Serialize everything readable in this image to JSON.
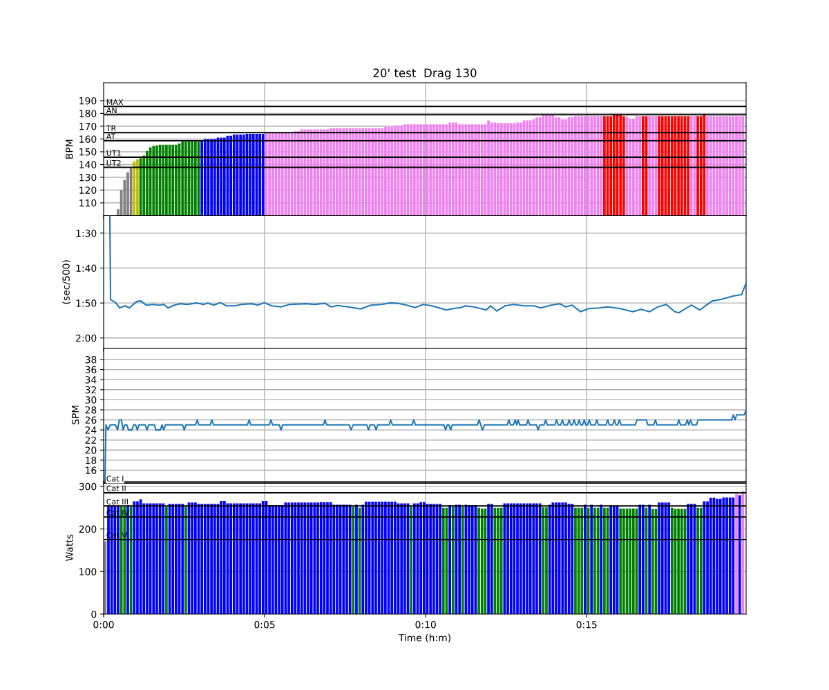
{
  "chart_data": [
    {
      "type": "bar",
      "title": "20' test  Drag 130",
      "ylabel": "BPM",
      "tick_labels": "y",
      "grid": true,
      "xlim": [
        0,
        1197
      ],
      "xticks": [
        {
          "value": 0,
          "label": null
        },
        {
          "value": 300,
          "label": null
        },
        {
          "value": 600,
          "label": null
        },
        {
          "value": 900,
          "label": null
        }
      ],
      "ylim": [
        100,
        204
      ],
      "yticks": [
        110,
        120,
        130,
        140,
        150,
        160,
        170,
        180,
        190
      ],
      "x": [
        27,
        33,
        39,
        45,
        51,
        57,
        63,
        69,
        75,
        81,
        87,
        93,
        99,
        105,
        111,
        117,
        123,
        129,
        135,
        141,
        147,
        153,
        159,
        165,
        171,
        177,
        183,
        189,
        195,
        201,
        207,
        213,
        219,
        225,
        231,
        237,
        243,
        249,
        255,
        261,
        267,
        273,
        279,
        285,
        291,
        297,
        303,
        309,
        315,
        321,
        327,
        333,
        339,
        345,
        351,
        357,
        363,
        369,
        375,
        381,
        387,
        393,
        399,
        405,
        411,
        417,
        423,
        429,
        435,
        441,
        447,
        453,
        459,
        465,
        471,
        477,
        483,
        489,
        495,
        501,
        507,
        513,
        519,
        525,
        531,
        537,
        543,
        549,
        555,
        561,
        567,
        573,
        579,
        585,
        591,
        597,
        603,
        609,
        615,
        621,
        627,
        633,
        639,
        645,
        651,
        657,
        663,
        669,
        675,
        681,
        687,
        693,
        699,
        705,
        711,
        717,
        723,
        729,
        735,
        741,
        747,
        753,
        759,
        765,
        771,
        777,
        783,
        789,
        795,
        801,
        807,
        813,
        819,
        825,
        831,
        837,
        843,
        849,
        855,
        861,
        867,
        873,
        879,
        885,
        891,
        897,
        903,
        909,
        915,
        921,
        927,
        933,
        939,
        945,
        951,
        957,
        963,
        969,
        975,
        981,
        987,
        993,
        999,
        1005,
        1011,
        1017,
        1023,
        1029,
        1035,
        1041,
        1047,
        1053,
        1059,
        1065,
        1071,
        1077,
        1083,
        1089,
        1095,
        1101,
        1107,
        1113,
        1119,
        1125,
        1131,
        1137,
        1143,
        1149,
        1155,
        1161,
        1167,
        1173,
        1179,
        1185,
        1191
      ],
      "values": [
        105,
        120,
        128,
        134,
        137,
        142.5,
        144,
        145,
        147,
        150.5,
        153.5,
        154.5,
        155,
        155.5,
        155.5,
        155.5,
        155.5,
        155.5,
        155.5,
        156.5,
        158,
        158,
        158,
        158,
        158,
        158,
        159,
        160,
        160,
        160,
        160,
        161,
        161,
        161,
        162.5,
        162.5,
        163.5,
        163.5,
        163.5,
        163.5,
        164,
        164,
        164,
        164,
        164,
        164,
        164.5,
        164.5,
        164.5,
        164.5,
        164.5,
        164.5,
        164.5,
        164.5,
        164.5,
        166,
        166,
        167.5,
        167.5,
        167.5,
        167.5,
        167.5,
        167.5,
        167.5,
        167.5,
        167.5,
        168.5,
        168.5,
        168.5,
        168.5,
        168.5,
        168.5,
        168.5,
        168.5,
        168.5,
        168.5,
        168.5,
        168.5,
        168.5,
        168.5,
        168.5,
        168.5,
        168.5,
        169.5,
        169.5,
        169.5,
        170.5,
        170.5,
        170.5,
        171.5,
        171.5,
        171.5,
        171.5,
        171.5,
        171.5,
        171.5,
        171.5,
        171.5,
        171.5,
        171.5,
        171.5,
        171.5,
        171.5,
        173,
        173,
        173,
        171.5,
        171.5,
        171.5,
        171.5,
        171.5,
        171.5,
        171.5,
        171.5,
        171.5,
        174.5,
        173,
        173,
        172.5,
        172.5,
        172.5,
        172.5,
        172.5,
        172.5,
        173,
        173,
        174.5,
        174.5,
        174.5,
        175.5,
        177,
        177,
        178.5,
        178.5,
        178.5,
        178.5,
        177,
        177,
        175.5,
        175.5,
        177,
        177,
        178,
        178,
        178,
        178,
        178,
        178,
        178,
        178,
        178,
        178,
        178,
        178,
        179.5,
        179.5,
        179.5,
        178,
        177.5,
        176,
        176,
        178,
        178,
        178,
        178,
        178,
        178,
        178,
        178,
        178,
        178,
        178,
        178,
        178,
        178,
        178,
        178,
        178,
        178,
        178,
        178,
        178,
        179.5,
        178,
        178,
        178,
        178,
        178,
        178,
        178,
        178,
        178,
        178,
        178,
        178
      ],
      "colors": [
        "#808080",
        "#808080",
        "#808080",
        "#808080",
        "#808080",
        "#bfbf00",
        "#bfbf00",
        "#008000",
        "#008000",
        "#008000",
        "#008000",
        "#008000",
        "#008000",
        "#008000",
        "#008000",
        "#008000",
        "#008000",
        "#008000",
        "#008000",
        "#008000",
        "#008000",
        "#008000",
        "#008000",
        "#008000",
        "#008000",
        "#008000",
        "#0000ff",
        "#0000ff",
        "#0000ff",
        "#0000ff",
        "#0000ff",
        "#0000ff",
        "#0000ff",
        "#0000ff",
        "#0000ff",
        "#0000ff",
        "#0000ff",
        "#0000ff",
        "#0000ff",
        "#0000ff",
        "#0000ff",
        "#0000ff",
        "#0000ff",
        "#0000ff",
        "#0000ff",
        "#0000ff",
        "#ee82ee",
        "#ee82ee",
        "#ee82ee",
        "#ee82ee",
        "#ee82ee",
        "#ee82ee",
        "#ee82ee",
        "#ee82ee",
        "#ee82ee",
        "#ee82ee",
        "#ee82ee",
        "#ee82ee",
        "#ee82ee",
        "#ee82ee",
        "#ee82ee",
        "#ee82ee",
        "#ee82ee",
        "#ee82ee",
        "#ee82ee",
        "#ee82ee",
        "#ee82ee",
        "#ee82ee",
        "#ee82ee",
        "#ee82ee",
        "#ee82ee",
        "#ee82ee",
        "#ee82ee",
        "#ee82ee",
        "#ee82ee",
        "#ee82ee",
        "#ee82ee",
        "#ee82ee",
        "#ee82ee",
        "#ee82ee",
        "#ee82ee",
        "#ee82ee",
        "#ee82ee",
        "#ee82ee",
        "#ee82ee",
        "#ee82ee",
        "#ee82ee",
        "#ee82ee",
        "#ee82ee",
        "#ee82ee",
        "#ee82ee",
        "#ee82ee",
        "#ee82ee",
        "#ee82ee",
        "#ee82ee",
        "#ee82ee",
        "#ee82ee",
        "#ee82ee",
        "#ee82ee",
        "#ee82ee",
        "#ee82ee",
        "#ee82ee",
        "#ee82ee",
        "#ee82ee",
        "#ee82ee",
        "#ee82ee",
        "#ee82ee",
        "#ee82ee",
        "#ee82ee",
        "#ee82ee",
        "#ee82ee",
        "#ee82ee",
        "#ee82ee",
        "#ee82ee",
        "#ee82ee",
        "#ee82ee",
        "#ee82ee",
        "#ee82ee",
        "#ee82ee",
        "#ee82ee",
        "#ee82ee",
        "#ee82ee",
        "#ee82ee",
        "#ee82ee",
        "#ee82ee",
        "#ee82ee",
        "#ee82ee",
        "#ee82ee",
        "#ee82ee",
        "#ee82ee",
        "#ee82ee",
        "#ee82ee",
        "#ee82ee",
        "#ee82ee",
        "#ee82ee",
        "#ee82ee",
        "#ee82ee",
        "#ee82ee",
        "#ee82ee",
        "#ee82ee",
        "#ee82ee",
        "#ee82ee",
        "#ee82ee",
        "#ee82ee",
        "#ee82ee",
        "#ee82ee",
        "#ee82ee",
        "#ee82ee",
        "#ee82ee",
        "#ee82ee",
        "#ee82ee",
        "#ff0000",
        "#ff0000",
        "#ff0000",
        "#ff0000",
        "#ff0000",
        "#ff0000",
        "#ff0000",
        "#ee82ee",
        "#ee82ee",
        "#ee82ee",
        "#ee82ee",
        "#ee82ee",
        "#ff0000",
        "#ff0000",
        "#ee82ee",
        "#ee82ee",
        "#ee82ee",
        "#ff0000",
        "#ff0000",
        "#ff0000",
        "#ff0000",
        "#ff0000",
        "#ff0000",
        "#ff0000",
        "#ff0000",
        "#ff0000",
        "#ff0000",
        "#ee82ee",
        "#ee82ee",
        "#ff0000",
        "#ff0000",
        "#ff0000",
        "#ee82ee",
        "#ee82ee",
        "#ee82ee",
        "#ee82ee",
        "#ee82ee",
        "#ee82ee",
        "#ee82ee",
        "#ee82ee",
        "#ee82ee",
        "#ee82ee",
        "#ee82ee",
        "#ee82ee"
      ],
      "ref_lines": [
        {
          "axis": "y",
          "value": 185.5,
          "label": "MAX",
          "color": "#000000"
        },
        {
          "axis": "y",
          "value": 179,
          "label": "AN",
          "color": "#000000"
        },
        {
          "axis": "y",
          "value": 165,
          "label": "TR",
          "color": "#000000"
        },
        {
          "axis": "y",
          "value": 158.6,
          "label": "AT",
          "color": "#000000"
        },
        {
          "axis": "y",
          "value": 145.7,
          "label": "UT1",
          "color": "#000000"
        },
        {
          "axis": "y",
          "value": 137.8,
          "label": "UT2",
          "color": "#000000"
        }
      ]
    },
    {
      "type": "line",
      "ylabel": "(sec/500)",
      "tick_labels": "y",
      "grid": true,
      "xlim": [
        0,
        1197
      ],
      "xticks": [
        {
          "value": 0,
          "label": null
        },
        {
          "value": 300,
          "label": null
        },
        {
          "value": 600,
          "label": null
        },
        {
          "value": 900,
          "label": null
        }
      ],
      "ylim": [
        123,
        85
      ],
      "yticks": [
        {
          "value": 90,
          "label": "1:30"
        },
        {
          "value": 100,
          "label": "1:40"
        },
        {
          "value": 110,
          "label": "1:50"
        },
        {
          "value": 120,
          "label": "2:00"
        }
      ],
      "series": [
        {
          "color": "#1f77b4",
          "x": [
            11.6,
            12.9,
            22.2,
            30.0,
            40.2,
            48.0,
            61.3,
            69.1,
            79.2,
            92.5,
            104.2,
            112.0,
            119.8,
            131.5,
            143.2,
            154.9,
            174.4,
            186.1,
            193.9,
            205.6,
            217.3,
            229.0,
            244.6,
            256.3,
            275.8,
            287.5,
            299.2,
            313.3,
            330.5,
            346.1,
            377.3,
            392.9,
            412.4,
            424.1,
            435.8,
            455.3,
            478.7,
            498.2,
            517.7,
            533.3,
            548.9,
            564.5,
            580.2,
            595.8,
            611.4,
            638.7,
            650.4,
            666.0,
            673.8,
            689.4,
            705.0,
            712.8,
            720.6,
            732.3,
            748.0,
            763.6,
            783.1,
            802.6,
            814.2,
            833.8,
            849.4,
            861.1,
            872.8,
            888.4,
            904.0,
            923.5,
            939.1,
            962.5,
            986.0,
            1001.5,
            1017.1,
            1032.7,
            1048.3,
            1063.9,
            1071.7,
            1079.5,
            1095.2,
            1110.8,
            1118.6,
            1134.2,
            1149.7,
            1173.2,
            1188.8,
            1197
          ],
          "values": [
            85,
            109.0,
            109.9,
            111.4,
            110.8,
            111.4,
            109.6,
            109.4,
            110.6,
            110.4,
            110.6,
            110.4,
            111.4,
            110.6,
            110.2,
            110.4,
            110.0,
            110.4,
            110.0,
            110.6,
            109.9,
            110.8,
            110.8,
            110.4,
            110.2,
            110.6,
            109.9,
            110.8,
            111.1,
            110.4,
            110.2,
            110.4,
            110.1,
            111.1,
            110.7,
            111.1,
            111.7,
            110.6,
            110.4,
            110.0,
            110.1,
            110.6,
            111.3,
            110.4,
            110.8,
            112.0,
            111.6,
            111.3,
            110.8,
            111.1,
            111.7,
            112.0,
            110.8,
            112.3,
            110.8,
            110.4,
            110.8,
            110.8,
            111.4,
            110.6,
            110.2,
            111.1,
            110.6,
            112.5,
            111.6,
            111.4,
            111.1,
            111.6,
            112.5,
            111.8,
            112.5,
            111.1,
            110.4,
            112.5,
            112.8,
            112.0,
            110.6,
            112.0,
            111.1,
            109.4,
            109.0,
            108.0,
            107.6,
            104.2
          ]
        }
      ]
    },
    {
      "type": "line",
      "ylabel": "SPM",
      "tick_labels": "y",
      "grid": true,
      "xlim": [
        0,
        1197
      ],
      "xticks": [
        {
          "value": 0,
          "label": null
        },
        {
          "value": 300,
          "label": null
        },
        {
          "value": 600,
          "label": null
        },
        {
          "value": 900,
          "label": null
        }
      ],
      "ylim": [
        13.8,
        40.2
      ],
      "yticks": [
        16,
        18,
        20,
        22,
        24,
        26,
        28,
        30,
        32,
        34,
        36,
        38
      ],
      "series": [
        {
          "color": "#1f77b4",
          "x": [
            2.7,
            4.3,
            8.2,
            12.1,
            22.2,
            26.1,
            29.3,
            33.2,
            36.3,
            39.4,
            43.3,
            46.4,
            52.7,
            55.8,
            59.7,
            62.8,
            66.0,
            77.6,
            80.8,
            83.9,
            94.8,
            97.1,
            105.7,
            108.8,
            112.0,
            115.1,
            147.1,
            150.2,
            153.3,
            171.3,
            174.4,
            177.5,
            198.6,
            201.7,
            204.8,
            268.0,
            271.2,
            274.3,
            308.6,
            311.7,
            314.9,
            327.3,
            330.5,
            333.6,
            409.3,
            412.4,
            415.5,
            457.6,
            460.8,
            464.7,
            490.4,
            493.5,
            496.7,
            504.5,
            507.6,
            510.7,
            531.8,
            534.9,
            538.0,
            574.7,
            577.8,
            580.9,
            634.0,
            637.1,
            640.2,
            643.4,
            646.5,
            649.6,
            696.4,
            699.5,
            702.7,
            705.8,
            709.7,
            751.8,
            755.0,
            758.1,
            763.5,
            766.6,
            769.8,
            772.1,
            775.2,
            787.7,
            790.8,
            793.9,
            806.4,
            809.6,
            812.7,
            820.5,
            823.6,
            826.7,
            840.8,
            843.9,
            847.0,
            851.7,
            854.8,
            857.9,
            864.2,
            867.3,
            870.4,
            873.5,
            876.7,
            879.8,
            882.9,
            886.0,
            889.1,
            892.3,
            895.4,
            898.5,
            901.6,
            904.8,
            907.9,
            915.7,
            918.8,
            921.9,
            936.0,
            939.1,
            942.2,
            948.5,
            951.6,
            954.7,
            957.8,
            961.0,
            964.1,
            990.6,
            993.7,
            1010.9,
            1014.0,
            1024.9,
            1028.0,
            1031.2,
            1068.6,
            1071.7,
            1074.9,
            1084.2,
            1087.3,
            1090.5,
            1093.6,
            1096.7,
            1104.5,
            1107.6,
            1170.1,
            1173.2,
            1176.3,
            1179.4,
            1193.5,
            1197
          ],
          "values": [
            14,
            25,
            24,
            25,
            25,
            24,
            26,
            26,
            24,
            25,
            25,
            24,
            24,
            25,
            25,
            24,
            25,
            25,
            24,
            25,
            25,
            24,
            24,
            25,
            24,
            25,
            25,
            24,
            25,
            25,
            26,
            25,
            25,
            26,
            25,
            25,
            26,
            25,
            25,
            26,
            25,
            25,
            24,
            25,
            25,
            26,
            25,
            25,
            24,
            25,
            25,
            24,
            25,
            25,
            24,
            25,
            25,
            26,
            25,
            25,
            26,
            25,
            25,
            24,
            25,
            25,
            24,
            25,
            25,
            26,
            25,
            24,
            25,
            25,
            26,
            25,
            25,
            26,
            25,
            26,
            25,
            25,
            26,
            25,
            25,
            24,
            25,
            25,
            26,
            25,
            25,
            26,
            25,
            25,
            26,
            25,
            25,
            26,
            25,
            25,
            26,
            25,
            25,
            26,
            25,
            25,
            26,
            25,
            25,
            26,
            25,
            25,
            26,
            25,
            25,
            26,
            25,
            25,
            26,
            25,
            25,
            26,
            25,
            25,
            26,
            26,
            25,
            25,
            26,
            25,
            25,
            26,
            25,
            25,
            26,
            25,
            26,
            25,
            25,
            26,
            26,
            27,
            26,
            27,
            27,
            28
          ]
        }
      ]
    },
    {
      "type": "bar",
      "ylabel": "Watts",
      "xlabel": "Time (h:m)",
      "grid": true,
      "xlim": [
        0,
        1197
      ],
      "xticks": [
        {
          "value": 0,
          "label": "0:00"
        },
        {
          "value": 300,
          "label": "0:05"
        },
        {
          "value": 600,
          "label": "0:10"
        },
        {
          "value": 900,
          "label": "0:15"
        }
      ],
      "ylim": [
        0,
        312
      ],
      "yticks": [
        0,
        100,
        200,
        300
      ],
      "x": [
        3,
        9,
        15,
        21,
        27,
        33,
        39,
        45,
        51,
        57,
        63,
        69,
        75,
        81,
        87,
        93,
        99,
        105,
        111,
        117,
        123,
        129,
        135,
        141,
        147,
        153,
        159,
        165,
        171,
        177,
        183,
        189,
        195,
        201,
        207,
        213,
        219,
        225,
        231,
        237,
        243,
        249,
        255,
        261,
        267,
        273,
        279,
        285,
        291,
        297,
        303,
        309,
        315,
        321,
        327,
        333,
        339,
        345,
        351,
        357,
        363,
        369,
        375,
        381,
        387,
        393,
        399,
        405,
        411,
        417,
        423,
        429,
        435,
        441,
        447,
        453,
        459,
        465,
        471,
        477,
        483,
        489,
        495,
        501,
        507,
        513,
        519,
        525,
        531,
        537,
        543,
        549,
        555,
        561,
        567,
        573,
        579,
        585,
        591,
        597,
        603,
        609,
        615,
        621,
        627,
        633,
        639,
        645,
        651,
        657,
        663,
        669,
        675,
        681,
        687,
        693,
        699,
        705,
        711,
        717,
        723,
        729,
        735,
        741,
        747,
        753,
        759,
        765,
        771,
        777,
        783,
        789,
        795,
        801,
        807,
        813,
        819,
        825,
        831,
        837,
        843,
        849,
        855,
        861,
        867,
        873,
        879,
        885,
        891,
        897,
        903,
        909,
        915,
        921,
        927,
        933,
        939,
        945,
        951,
        957,
        963,
        969,
        975,
        981,
        987,
        993,
        999,
        1005,
        1011,
        1017,
        1023,
        1029,
        1035,
        1041,
        1047,
        1053,
        1059,
        1065,
        1071,
        1077,
        1083,
        1089,
        1095,
        1101,
        1107,
        1113,
        1119,
        1125,
        1131,
        1137,
        1143,
        1149,
        1155,
        1161,
        1167,
        1173,
        1179,
        1185,
        1191
      ],
      "values": [
        171,
        255,
        255,
        255,
        255,
        252,
        252,
        255,
        252,
        265,
        265,
        270,
        260,
        260,
        260,
        260,
        260,
        260,
        260,
        252,
        259,
        259,
        259,
        259,
        259,
        252,
        262,
        262,
        262,
        259,
        259,
        259,
        259,
        259,
        259,
        259,
        266,
        266,
        260,
        260,
        260,
        260,
        260,
        260,
        260,
        260,
        260,
        260,
        260,
        266,
        266,
        256,
        256,
        256,
        256,
        256,
        262,
        262,
        262,
        262,
        262,
        262,
        262,
        262,
        262,
        262,
        262,
        263,
        263,
        263,
        263,
        257,
        257,
        257,
        257,
        257,
        257,
        252,
        257,
        250,
        257,
        264,
        264,
        264,
        264,
        264,
        264,
        264,
        264,
        264,
        264,
        260,
        260,
        260,
        260,
        252,
        260,
        260,
        263,
        263,
        259,
        259,
        259,
        259,
        259,
        250,
        250,
        256,
        252,
        257,
        257,
        252,
        257,
        256,
        256,
        256,
        250,
        248,
        248,
        259,
        259,
        250,
        250,
        250,
        260,
        260,
        260,
        260,
        260,
        260,
        260,
        260,
        260,
        260,
        260,
        260,
        251,
        251,
        257,
        262,
        262,
        262,
        262,
        262,
        259,
        259,
        250,
        250,
        250,
        257,
        250,
        257,
        250,
        250,
        257,
        250,
        250,
        255,
        255,
        255,
        248,
        248,
        248,
        248,
        248,
        248,
        257,
        257,
        250,
        257,
        247,
        247,
        262,
        262,
        262,
        262,
        250,
        247,
        247,
        247,
        247,
        259,
        259,
        259,
        250,
        250,
        265,
        265,
        273,
        273,
        271,
        271,
        274,
        274,
        274,
        274,
        283,
        279,
        289
      ],
      "colors": [
        "#808080",
        "#0000ff",
        "#0000ff",
        "#0000ff",
        "#0000ff",
        "#008000",
        "#008000",
        "#0000ff",
        "#008000",
        "#0000ff",
        "#0000ff",
        "#0000ff",
        "#0000ff",
        "#0000ff",
        "#0000ff",
        "#0000ff",
        "#0000ff",
        "#0000ff",
        "#0000ff",
        "#008000",
        "#0000ff",
        "#0000ff",
        "#0000ff",
        "#0000ff",
        "#0000ff",
        "#008000",
        "#0000ff",
        "#0000ff",
        "#0000ff",
        "#0000ff",
        "#0000ff",
        "#0000ff",
        "#0000ff",
        "#0000ff",
        "#0000ff",
        "#0000ff",
        "#0000ff",
        "#0000ff",
        "#0000ff",
        "#0000ff",
        "#0000ff",
        "#0000ff",
        "#0000ff",
        "#0000ff",
        "#0000ff",
        "#0000ff",
        "#0000ff",
        "#0000ff",
        "#0000ff",
        "#0000ff",
        "#0000ff",
        "#0000ff",
        "#0000ff",
        "#0000ff",
        "#0000ff",
        "#0000ff",
        "#0000ff",
        "#0000ff",
        "#0000ff",
        "#0000ff",
        "#0000ff",
        "#0000ff",
        "#0000ff",
        "#0000ff",
        "#0000ff",
        "#0000ff",
        "#0000ff",
        "#0000ff",
        "#0000ff",
        "#0000ff",
        "#0000ff",
        "#0000ff",
        "#0000ff",
        "#0000ff",
        "#0000ff",
        "#0000ff",
        "#0000ff",
        "#008000",
        "#0000ff",
        "#008000",
        "#0000ff",
        "#0000ff",
        "#0000ff",
        "#0000ff",
        "#0000ff",
        "#0000ff",
        "#0000ff",
        "#0000ff",
        "#0000ff",
        "#0000ff",
        "#0000ff",
        "#0000ff",
        "#0000ff",
        "#0000ff",
        "#0000ff",
        "#008000",
        "#0000ff",
        "#0000ff",
        "#0000ff",
        "#0000ff",
        "#0000ff",
        "#0000ff",
        "#0000ff",
        "#0000ff",
        "#0000ff",
        "#008000",
        "#008000",
        "#0000ff",
        "#008000",
        "#0000ff",
        "#0000ff",
        "#008000",
        "#0000ff",
        "#0000ff",
        "#0000ff",
        "#0000ff",
        "#008000",
        "#008000",
        "#008000",
        "#0000ff",
        "#0000ff",
        "#008000",
        "#008000",
        "#008000",
        "#0000ff",
        "#0000ff",
        "#0000ff",
        "#0000ff",
        "#0000ff",
        "#0000ff",
        "#0000ff",
        "#0000ff",
        "#0000ff",
        "#0000ff",
        "#0000ff",
        "#0000ff",
        "#008000",
        "#008000",
        "#0000ff",
        "#0000ff",
        "#0000ff",
        "#0000ff",
        "#0000ff",
        "#0000ff",
        "#0000ff",
        "#0000ff",
        "#008000",
        "#008000",
        "#008000",
        "#0000ff",
        "#008000",
        "#0000ff",
        "#008000",
        "#008000",
        "#0000ff",
        "#008000",
        "#008000",
        "#0000ff",
        "#0000ff",
        "#0000ff",
        "#008000",
        "#008000",
        "#008000",
        "#008000",
        "#008000",
        "#008000",
        "#0000ff",
        "#0000ff",
        "#008000",
        "#0000ff",
        "#008000",
        "#008000",
        "#0000ff",
        "#0000ff",
        "#0000ff",
        "#0000ff",
        "#008000",
        "#008000",
        "#008000",
        "#008000",
        "#008000",
        "#0000ff",
        "#0000ff",
        "#0000ff",
        "#008000",
        "#008000",
        "#0000ff",
        "#0000ff",
        "#0000ff",
        "#0000ff",
        "#0000ff",
        "#0000ff",
        "#0000ff",
        "#0000ff",
        "#0000ff",
        "#0000ff",
        "#ee82ee",
        "#0000ff",
        "#ee82ee"
      ],
      "ref_lines": [
        {
          "axis": "y",
          "value": 308,
          "label": "Cat I",
          "color": "#000000"
        },
        {
          "axis": "y",
          "value": 285,
          "label": "Cat II",
          "color": "#000000"
        },
        {
          "axis": "y",
          "value": 254,
          "label": "Cat III",
          "color": "#000000"
        },
        {
          "axis": "y",
          "value": 228,
          "label": "Cat IV",
          "color": "#000000"
        },
        {
          "axis": "y",
          "value": 175,
          "label": "Cat V",
          "color": "#000000"
        }
      ]
    }
  ]
}
